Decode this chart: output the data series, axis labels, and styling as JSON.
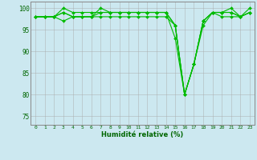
{
  "x": [
    0,
    1,
    2,
    3,
    4,
    5,
    6,
    7,
    8,
    9,
    10,
    11,
    12,
    13,
    14,
    15,
    16,
    17,
    18,
    19,
    20,
    21,
    22,
    23
  ],
  "series": [
    [
      98,
      98,
      98,
      99,
      98,
      98,
      98,
      98,
      98,
      98,
      98,
      98,
      98,
      98,
      98,
      96,
      80,
      87,
      96,
      99,
      98,
      98,
      98,
      99
    ],
    [
      98,
      98,
      98,
      100,
      99,
      99,
      99,
      99,
      99,
      99,
      99,
      99,
      99,
      99,
      99,
      96,
      80,
      87,
      97,
      99,
      99,
      99,
      98,
      100
    ],
    [
      98,
      98,
      98,
      99,
      98,
      98,
      98,
      100,
      99,
      99,
      99,
      99,
      99,
      99,
      99,
      96,
      80,
      87,
      97,
      99,
      99,
      100,
      98,
      99
    ],
    [
      98,
      98,
      98,
      97,
      98,
      98,
      98,
      99,
      99,
      99,
      99,
      99,
      99,
      99,
      99,
      93,
      80,
      87,
      97,
      99,
      99,
      99,
      98,
      99
    ]
  ],
  "line_color": "#00bb00",
  "marker_color": "#00bb00",
  "bg_color": "#cce8f0",
  "grid_color": "#aaaaaa",
  "tick_label_color": "#006600",
  "ylabel_ticks": [
    75,
    80,
    85,
    90,
    95,
    100
  ],
  "ylim": [
    73,
    101.5
  ],
  "xlim": [
    -0.5,
    23.5
  ],
  "xlabel": "Humidité relative (%)",
  "xlabel_color": "#006600"
}
